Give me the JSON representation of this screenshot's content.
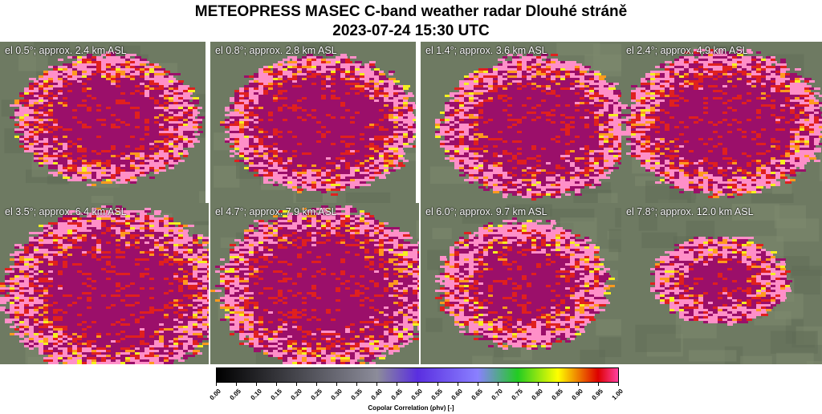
{
  "title_line1": "METEOPRESS MASEC C-band weather radar Dlouhé stráně",
  "title_line2": "2023-07-24 15:30 UTC",
  "panels": [
    {
      "label": "el 0.5°; approx. 2.4 km ASL"
    },
    {
      "label": "el 0.8°; approx. 2.8 km ASL"
    },
    {
      "label": "el 1.4°; approx. 3.6 km ASL"
    },
    {
      "label": "el 2.4°; approx. 4.9 km ASL"
    },
    {
      "label": "el 3.5°; approx. 6.4 km ASL"
    },
    {
      "label": "el 4.7°; approx. 7.9 km ASL"
    },
    {
      "label": "el 6.0°; approx. 9.7 km ASL"
    },
    {
      "label": "el 7.8°; approx. 12.0 km ASL"
    }
  ],
  "colorbar": {
    "title": "Copolar Correlation (ρhv) [-]",
    "ticks": [
      "0.00",
      "0.05",
      "0.10",
      "0.15",
      "0.20",
      "0.25",
      "0.30",
      "0.35",
      "0.40",
      "0.45",
      "0.50",
      "0.55",
      "0.60",
      "0.65",
      "0.70",
      "0.75",
      "0.80",
      "0.85",
      "0.90",
      "0.95",
      "1.00"
    ],
    "colors": {
      "0.00": "#000000",
      "0.40": "#8c8c9a",
      "0.50": "#5a2ee0",
      "0.65": "#8a80ff",
      "0.75": "#22cc22",
      "0.85": "#ffff00",
      "0.95": "#dd0000",
      "1.00": "#ff40a0"
    }
  },
  "palette": {
    "map_bg": "#6e7a62",
    "high": "#9b0f6a",
    "pink": "#ff8fc8",
    "red": "#e0201e",
    "orange": "#ff9a1e",
    "yellow": "#f5f020"
  }
}
